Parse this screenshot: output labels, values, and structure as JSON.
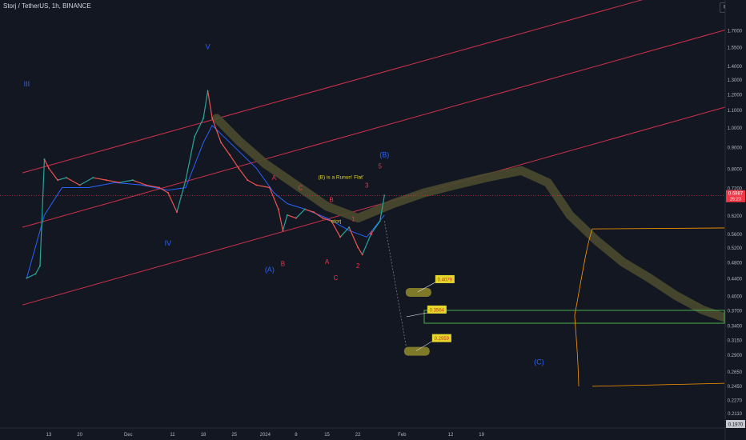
{
  "header": {
    "title": "Storj / TetherUS, 1h, BINANCE",
    "currency": "USDT"
  },
  "chart_data": {
    "type": "line",
    "title": "Storj / TetherUS, 1h, BINANCE",
    "xlabel": "",
    "ylabel": "",
    "y_scale": "log",
    "ylim": [
      0.19,
      2.0
    ],
    "y_ticks": [
      "1.7000",
      "1.5500",
      "1.4000",
      "1.3000",
      "1.2000",
      "1.1000",
      "1.0000",
      "0.9000",
      "0.8000",
      "0.7200",
      "0.6200",
      "0.5600",
      "0.5200",
      "0.4800",
      "0.4400",
      "0.4000",
      "0.3700",
      "0.3400",
      "0.3150",
      "0.2900",
      "0.2650",
      "0.2450",
      "0.2270",
      "0.2110",
      "0.1970"
    ],
    "x_ticks": [
      "13",
      "20",
      "Dec",
      "11",
      "18",
      "25",
      "2024",
      "8",
      "15",
      "22",
      "Feb",
      "12",
      "19"
    ],
    "current_price": {
      "label": "0.6887",
      "value": 0.6887,
      "countdown": "26:23"
    },
    "last_price_label": "0.1970",
    "price_series": {
      "name": "STORJ/USDT",
      "x": [
        "Nov 8",
        "Nov 10",
        "Nov 11",
        "Nov 12",
        "Nov 13",
        "Nov 15",
        "Nov 17",
        "Nov 20",
        "Nov 23",
        "Nov 26",
        "Nov 29",
        "Dec 2",
        "Dec 5",
        "Dec 8",
        "Dec 10",
        "Dec 12",
        "Dec 14",
        "Dec 16",
        "Dec 18",
        "Dec 19",
        "Dec 20",
        "Dec 22",
        "Dec 24",
        "Dec 26",
        "Dec 28",
        "Dec 30",
        "Jan 2",
        "Jan 4",
        "Jan 5",
        "Jan 6",
        "Jan 8",
        "Jan 10",
        "Jan 12",
        "Jan 14",
        "Jan 16",
        "Jan 18",
        "Jan 20",
        "Jan 22",
        "Jan 23",
        "Jan 25",
        "Jan 27",
        "Jan 28"
      ],
      "y": [
        0.44,
        0.45,
        0.47,
        0.84,
        0.8,
        0.75,
        0.76,
        0.73,
        0.76,
        0.75,
        0.74,
        0.75,
        0.73,
        0.72,
        0.7,
        0.63,
        0.75,
        0.95,
        1.05,
        1.22,
        1.05,
        0.92,
        0.86,
        0.8,
        0.75,
        0.73,
        0.72,
        0.64,
        0.57,
        0.62,
        0.61,
        0.64,
        0.63,
        0.61,
        0.6,
        0.55,
        0.58,
        0.52,
        0.5,
        0.56,
        0.6,
        0.69
      ]
    },
    "moving_average": {
      "x": [
        "Nov 8",
        "Nov 12",
        "Nov 16",
        "Nov 22",
        "Nov 28",
        "Dec 4",
        "Dec 10",
        "Dec 14",
        "Dec 18",
        "Dec 20",
        "Dec 24",
        "Dec 30",
        "Jan 3",
        "Jan 6",
        "Jan 10",
        "Jan 15",
        "Jan 20",
        "Jan 24",
        "Jan 28"
      ],
      "y": [
        0.44,
        0.62,
        0.72,
        0.72,
        0.74,
        0.73,
        0.71,
        0.72,
        0.92,
        1.01,
        0.92,
        0.8,
        0.7,
        0.66,
        0.64,
        0.61,
        0.57,
        0.55,
        0.62
      ]
    },
    "projection_path": {
      "x": [
        "Dec 21",
        "Dec 26",
        "Jan 1",
        "Jan 8",
        "Jan 15",
        "Jan 22",
        "Jan 30",
        "Feb 6",
        "Feb 13",
        "Feb 20",
        "Feb 28",
        "Mar 5",
        "Mar 10",
        "Mar 16",
        "Mar 22",
        "Mar 28",
        "Apr 3",
        "Apr 9",
        "Apr 14"
      ],
      "y": [
        1.05,
        0.93,
        0.82,
        0.73,
        0.65,
        0.61,
        0.66,
        0.7,
        0.73,
        0.76,
        0.79,
        0.74,
        0.62,
        0.54,
        0.48,
        0.44,
        0.4,
        0.37,
        0.355
      ]
    },
    "channel_lines": [
      {
        "from": [
          "Nov 7",
          0.78
        ],
        "to": [
          "Apr 16",
          2.3
        ]
      },
      {
        "from": [
          "Nov 7",
          0.58
        ],
        "to": [
          "Apr 16",
          1.72
        ]
      },
      {
        "from": [
          "Nov 7",
          0.38
        ],
        "to": [
          "Apr 16",
          1.13
        ]
      }
    ],
    "target_boxes": [
      {
        "label": "0.4079",
        "value": 0.4079
      },
      {
        "label": "0.3564",
        "value": 0.3564,
        "zone_high": 0.369,
        "zone_low": 0.344
      },
      {
        "label": "0.2959",
        "value": 0.2959
      }
    ],
    "wave_labels_blue": [
      {
        "text": "III",
        "x": "Nov 8",
        "y": 1.25
      },
      {
        "text": "V",
        "x": "Dec 19",
        "y": 1.53
      },
      {
        "text": "IV",
        "x": "Dec 10",
        "y": 0.525
      },
      {
        "text": "(A)",
        "x": "Jan 2",
        "y": 0.455
      },
      {
        "text": "(B)",
        "x": "Jan 28",
        "y": 0.85
      },
      {
        "text": "(C)",
        "x": "Mar 3",
        "y": 0.275
      }
    ],
    "wave_labels_red": [
      {
        "text": "A",
        "x": "Jan 3",
        "y": 0.75
      },
      {
        "text": "B",
        "x": "Jan 5",
        "y": 0.47
      },
      {
        "text": "C",
        "x": "Jan 9",
        "y": 0.71
      },
      {
        "text": "B",
        "x": "Jan 16",
        "y": 0.665
      },
      {
        "text": "A",
        "x": "Jan 15",
        "y": 0.475
      },
      {
        "text": "C",
        "x": "Jan 17",
        "y": 0.435
      },
      {
        "text": "1",
        "x": "Jan 21",
        "y": 0.6
      },
      {
        "text": "2",
        "x": "Jan 22",
        "y": 0.465
      },
      {
        "text": "3",
        "x": "Jan 24",
        "y": 0.72
      },
      {
        "text": "4",
        "x": "Jan 25",
        "y": 0.555
      },
      {
        "text": "5",
        "x": "Jan 27",
        "y": 0.8
      }
    ],
    "annotations": [
      {
        "text": "(B) is a Runun' Flat'",
        "x": "Jan 13",
        "y": 0.755
      },
      {
        "text": "storj",
        "x": "Jan 16",
        "y": 0.595
      }
    ],
    "colors": {
      "background": "#131722",
      "up": "#26a69a",
      "down": "#ef5350",
      "channel": "#d0324a",
      "ma": "#2962ff",
      "projection": "#4a4a2e",
      "target_fill": "#7f7a2a",
      "label_fill": "#e5d82c",
      "label_text": "#d32f2f",
      "zone": "#4caf50",
      "volume_profile": "#ff9800",
      "blue_label": "#2962ff",
      "red_label": "#f23645",
      "current_price": "#f23645"
    }
  }
}
